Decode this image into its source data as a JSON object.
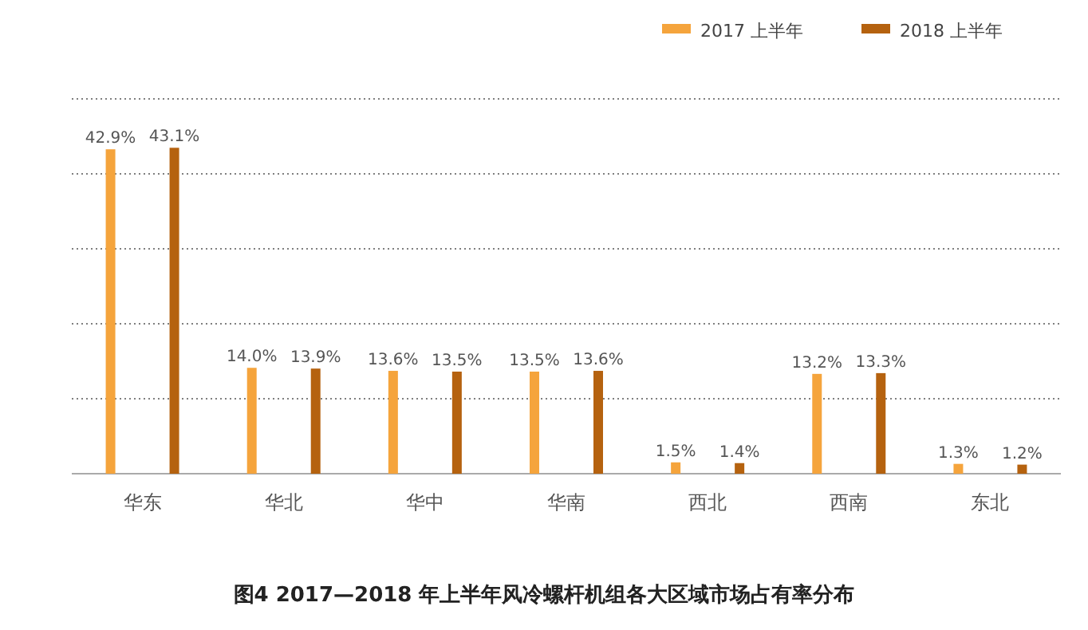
{
  "chart_data": {
    "type": "bar",
    "title": "图4  2017—2018 年上半年风冷螺杆机组各大区域市场占有率分布",
    "categories": [
      "华东",
      "华北",
      "华中",
      "华南",
      "西北",
      "西南",
      "东北"
    ],
    "series": [
      {
        "name": "2017 上半年",
        "color": "#f5a43c",
        "values": [
          42.9,
          14.0,
          13.6,
          13.5,
          1.5,
          13.2,
          1.3
        ],
        "value_labels": [
          "42.9%",
          "14.0%",
          "13.6%",
          "13.5%",
          "1.5%",
          "13.2%",
          "1.3%"
        ]
      },
      {
        "name": "2018 上半年",
        "color": "#b5620f",
        "values": [
          43.1,
          13.9,
          13.5,
          13.6,
          1.4,
          13.3,
          1.2
        ],
        "value_labels": [
          "43.1%",
          "13.9%",
          "13.5%",
          "13.6%",
          "1.4%",
          "13.3%",
          "1.2%"
        ]
      }
    ],
    "grid": "y",
    "legend": "top right"
  }
}
